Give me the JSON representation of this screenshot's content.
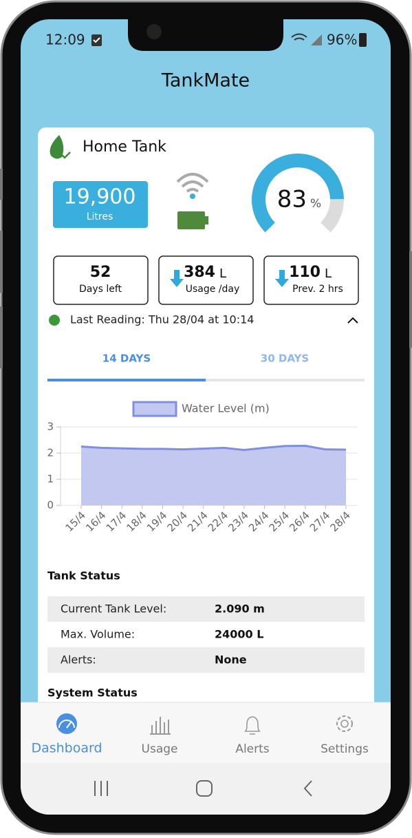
{
  "status_bar": {
    "time": "12:09",
    "battery": "96%"
  },
  "header": {
    "title": "TankMate"
  },
  "tank": {
    "name": "Home Tank",
    "volume": "19,900",
    "volume_unit": "Litres",
    "level_percent": 83,
    "level_unit": "%"
  },
  "stats": [
    {
      "value": 52,
      "label": "Days left"
    },
    {
      "value": 384,
      "unit": "L",
      "label": "Usage /day"
    },
    {
      "value": 110,
      "unit": "L",
      "label": "Prev. 2 hrs"
    }
  ],
  "last_reading": "Last Reading: Thu 28/04 at 10:14",
  "tabs": [
    "14 DAYS",
    "30 DAYS"
  ],
  "chart_data": {
    "type": "area",
    "categories": [
      "15/4",
      "16/4",
      "17/4",
      "18/4",
      "19/4",
      "20/4",
      "21/4",
      "22/4",
      "23/4",
      "24/4",
      "25/4",
      "26/4",
      "27/4",
      "28/4"
    ],
    "series": [
      {
        "name": "Water Level (m)",
        "color": "#7f8fdf",
        "fill": "#c2c8ef",
        "values": [
          2.25,
          2.2,
          2.18,
          2.16,
          2.16,
          2.14,
          2.17,
          2.2,
          2.12,
          2.2,
          2.27,
          2.28,
          2.14,
          2.13
        ]
      }
    ],
    "ylim": [
      0,
      3
    ],
    "yticks": [
      0,
      1,
      2,
      3
    ],
    "grid": true,
    "legend": "top"
  },
  "tank_status": {
    "title": "Tank Status",
    "rows": [
      [
        "Current Tank Level:",
        "2.090 m"
      ],
      [
        "Max. Volume:",
        "24000 L"
      ],
      [
        "Alerts:",
        "None"
      ]
    ]
  },
  "system_status": {
    "title": "System Status"
  },
  "nav": [
    "Dashboard",
    "Usage",
    "Alerts",
    "Settings"
  ]
}
